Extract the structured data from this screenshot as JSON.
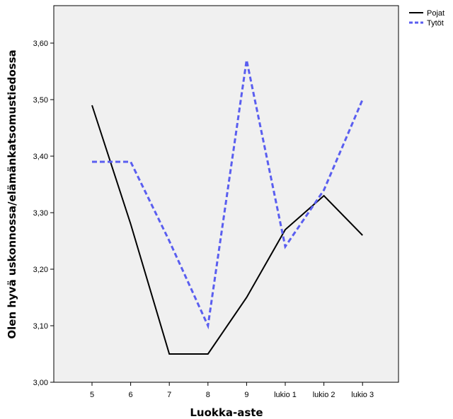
{
  "chart_data": {
    "type": "line",
    "title": "",
    "xlabel": "Luokka-aste",
    "ylabel": "Olen hyvä uskonnossa/elämänkatsomustiedossa",
    "categories": [
      "5",
      "6",
      "7",
      "8",
      "9",
      "lukio 1",
      "lukio 2",
      "lukio 3"
    ],
    "ylim": [
      3.0,
      3.65
    ],
    "yticks": [
      3.0,
      3.1,
      3.2,
      3.3,
      3.4,
      3.5,
      3.6
    ],
    "ytick_labels": [
      "3,00",
      "3,10",
      "3,20",
      "3,30",
      "3,40",
      "3,50",
      "3,60"
    ],
    "grid": false,
    "legend_position": "top-right",
    "series": [
      {
        "name": "Pojat",
        "color": "#000000",
        "dash": "solid",
        "values": [
          3.49,
          3.28,
          3.05,
          3.05,
          3.15,
          3.27,
          3.33,
          3.26
        ]
      },
      {
        "name": "Tytöt",
        "color": "#5a5ef0",
        "dash": "dashed",
        "values": [
          3.39,
          3.39,
          3.25,
          3.1,
          3.57,
          3.24,
          3.34,
          3.5
        ]
      }
    ]
  }
}
